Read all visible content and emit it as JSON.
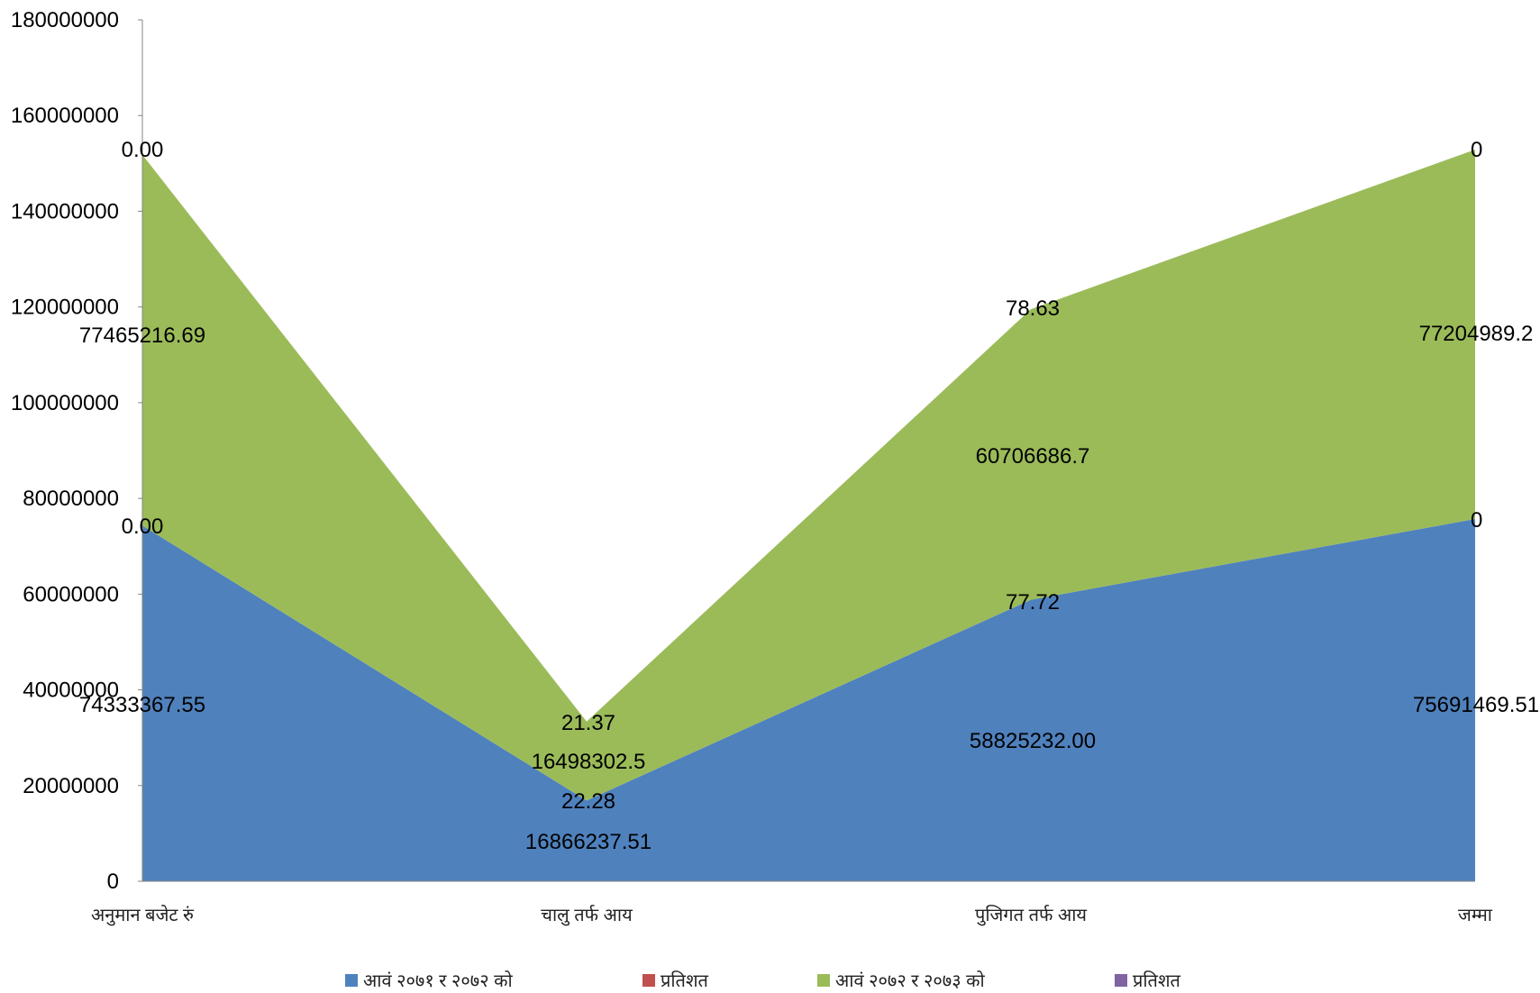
{
  "chart_data": {
    "type": "area",
    "stacked": true,
    "categories": [
      "अनुमान बजेट रुं",
      "चालु तर्फ आय",
      "पुजिगत तर्फ आय",
      "जम्मा"
    ],
    "ylim": [
      0,
      180000000
    ],
    "yticks": [
      0,
      20000000,
      40000000,
      60000000,
      80000000,
      100000000,
      120000000,
      140000000,
      160000000,
      180000000
    ],
    "yticks_text": [
      "0",
      "20000000",
      "40000000",
      "60000000",
      "80000000",
      "100000000",
      "120000000",
      "140000000",
      "160000000",
      "180000000"
    ],
    "grid": false,
    "legend_position": "bottom",
    "series": [
      {
        "name": "आवं २०७१ र २०७२ को",
        "color": "#4F81BD",
        "values": [
          74333367.55,
          16866237.51,
          58825232.0,
          75691469.51
        ],
        "labels": [
          "74333367.55",
          "16866237.51",
          "58825232.00",
          "75691469.51"
        ]
      },
      {
        "name": "प्रतिशत",
        "color": "#C0504D",
        "values": [
          0.0,
          22.28,
          77.72,
          0
        ],
        "labels": [
          "0.00",
          "22.28",
          "77.72",
          "0"
        ]
      },
      {
        "name": "आवं २०७२ र २०७३ को",
        "color": "#9BBB59",
        "values": [
          77465216.69,
          16498302.5,
          60706686.7,
          77204989.2
        ],
        "labels": [
          "77465216.69",
          "16498302.5",
          "60706686.7",
          "77204989.2"
        ]
      },
      {
        "name": "प्रतिशत",
        "color": "#8064A2",
        "values": [
          0.0,
          21.37,
          78.63,
          0
        ],
        "labels": [
          "0.00",
          "21.37",
          "78.63",
          "0"
        ]
      }
    ]
  }
}
